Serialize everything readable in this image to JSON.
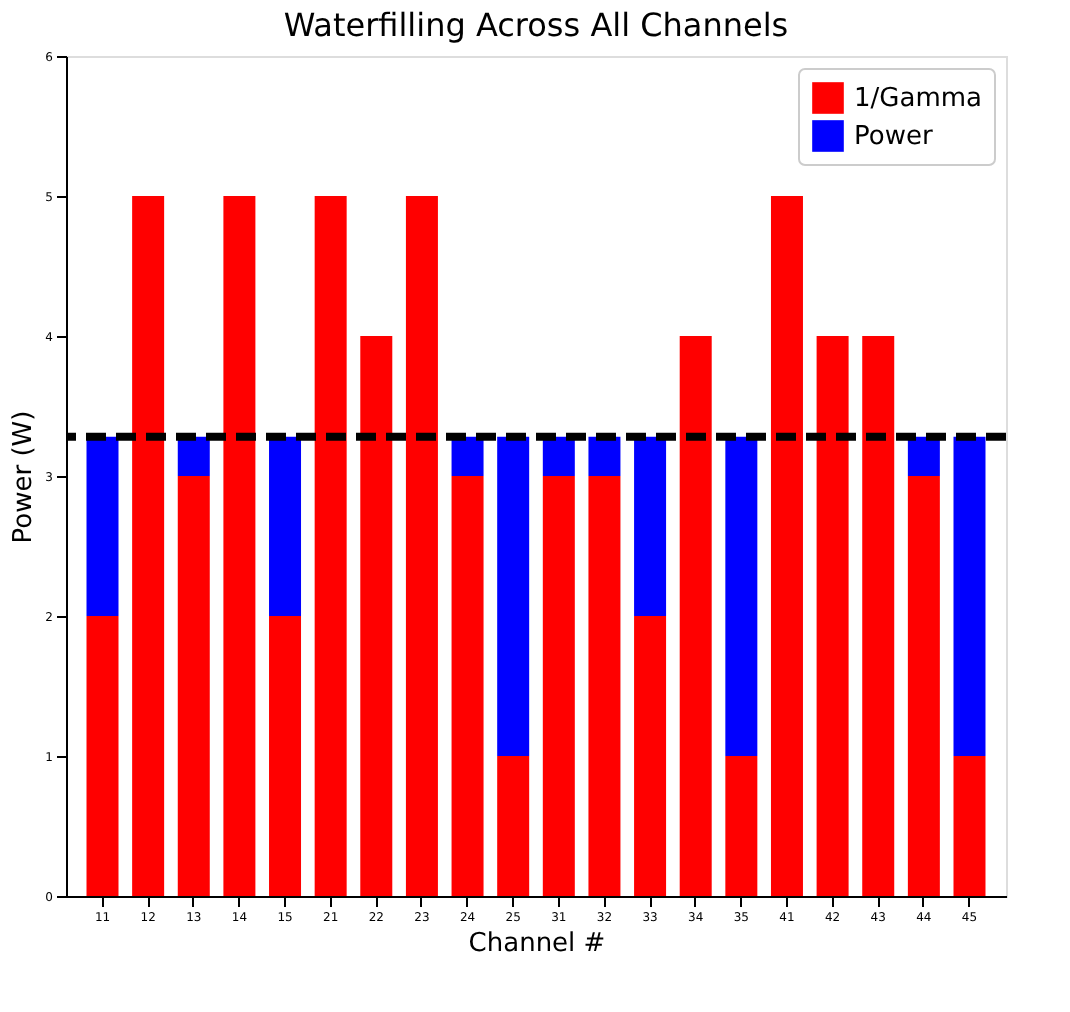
{
  "chart_data": {
    "type": "bar",
    "stacked": true,
    "title": "Waterfilling Across All Channels",
    "xlabel": "Channel #",
    "ylabel": "Power (W)",
    "categories": [
      "11",
      "12",
      "13",
      "14",
      "15",
      "21",
      "22",
      "23",
      "24",
      "25",
      "31",
      "32",
      "33",
      "34",
      "35",
      "41",
      "42",
      "43",
      "44",
      "45"
    ],
    "series": [
      {
        "name": "1/Gamma",
        "color": "#ff0000",
        "values": [
          2,
          5,
          3,
          5,
          2,
          5,
          4,
          5,
          3,
          1,
          3,
          3,
          2,
          4,
          1,
          5,
          4,
          4,
          3,
          1
        ]
      },
      {
        "name": "Power",
        "color": "#0000ff",
        "values": [
          1.28,
          0,
          0.28,
          0,
          1.28,
          0,
          0,
          0,
          0.28,
          2.28,
          0.28,
          0.28,
          1.28,
          0,
          2.28,
          0,
          0,
          0,
          0.28,
          2.28
        ]
      }
    ],
    "ylim": [
      0,
      6
    ],
    "yticks": [
      0,
      1,
      2,
      3,
      4,
      5,
      6
    ],
    "ref_lines": [
      {
        "axis": "y",
        "value": 3.28,
        "color": "#000000",
        "line_style": "dashed"
      }
    ],
    "legend": "top right",
    "grid": false
  }
}
